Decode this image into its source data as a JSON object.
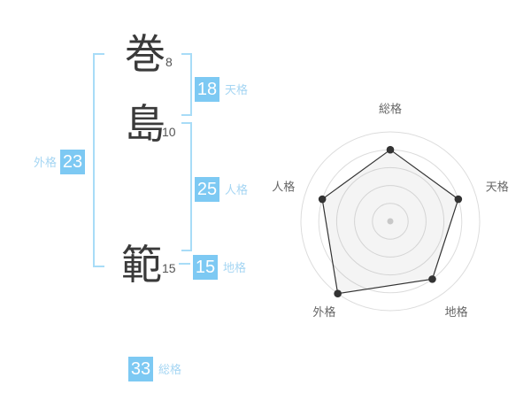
{
  "name_analysis": {
    "characters": [
      {
        "char": "巻",
        "strokes": "8"
      },
      {
        "char": "島",
        "strokes": "10"
      },
      {
        "char": "範",
        "strokes": "15"
      }
    ],
    "kaku": {
      "tenkaku": {
        "label": "天格",
        "value": "18"
      },
      "jinkaku": {
        "label": "人格",
        "value": "25"
      },
      "chikaku": {
        "label": "地格",
        "value": "15"
      },
      "gaikaku": {
        "label": "外格",
        "value": "23"
      },
      "soukaku": {
        "label": "総格",
        "value": "33"
      }
    }
  },
  "chart_data": {
    "type": "radar",
    "categories": [
      "総格",
      "天格",
      "地格",
      "外格",
      "人格"
    ],
    "values": [
      4,
      4,
      4,
      5,
      4
    ],
    "scale_max": 5,
    "grid_rings": 5,
    "start_angle_deg": -90,
    "direction": "clockwise",
    "grid": "circular",
    "legend": "none",
    "title": ""
  },
  "colors": {
    "accent_blue": "#7dc9f3",
    "light_blue_text": "#a6d6f3",
    "bracket_blue": "#a8dcf7",
    "kanji_dark": "#3a3a3a",
    "chart_grid": "#dcdcdc",
    "chart_line": "#333333",
    "chart_dot": "#333333",
    "chart_fill": "rgba(130,130,130,0.09)",
    "chart_center_dot": "#c8c8c8",
    "chart_label": "#666666"
  }
}
